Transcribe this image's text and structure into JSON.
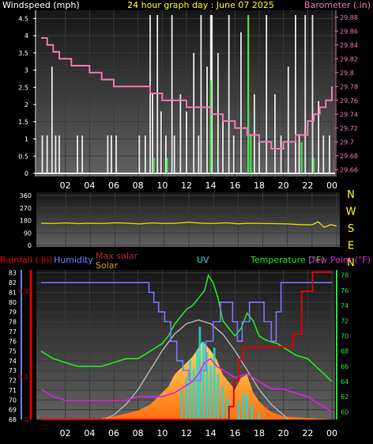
{
  "colors": {
    "wind": "#e8e8e8",
    "gust_green": "#44e844",
    "barometer": "#f07ab6",
    "direction": "#e6e000",
    "humidity": "#7878ff",
    "rain": "#e00000",
    "max_solar": "#b0b0b0",
    "solar_fill": "#ffa020",
    "uv": "#20d8d8",
    "temperature": "#22e822",
    "dew_point": "#e020e0"
  },
  "chart_data": [
    {
      "type": "line",
      "title": "24 hour graph day : June 07 2025",
      "left_label": "Windspeed (mph)",
      "right_label": "Barometer (.in)",
      "x_ticks": [
        "02",
        "04",
        "06",
        "08",
        "10",
        "12",
        "14",
        "16",
        "18",
        "20",
        "22",
        "00"
      ],
      "y_left_ticks": [
        "0",
        "0.5",
        "1",
        "1.5",
        "2",
        "2.5",
        "3",
        "3.5",
        "4",
        "4.5"
      ],
      "y_left_range": [
        0,
        4.6
      ],
      "y_right_ticks": [
        "29.66",
        "29.68",
        "29.7",
        "29.72",
        "29.74",
        "29.76",
        "29.78",
        "29.8",
        "29.82",
        "29.84",
        "29.86",
        "29.88"
      ],
      "y_right_range": [
        29.65,
        29.89
      ],
      "barometer": {
        "x": [
          0,
          0.5,
          1,
          1.5,
          2,
          2.5,
          3,
          4,
          5,
          6,
          7,
          8,
          9,
          10,
          11,
          12,
          13,
          14,
          15,
          16,
          17,
          18,
          19,
          19.5,
          20,
          21,
          22,
          22.5,
          23,
          23.5,
          24
        ],
        "y": [
          29.85,
          29.84,
          29.83,
          29.82,
          29.82,
          29.81,
          29.81,
          29.8,
          29.79,
          29.78,
          29.78,
          29.78,
          29.77,
          29.76,
          29.76,
          29.75,
          29.75,
          29.74,
          29.73,
          29.72,
          29.71,
          29.7,
          29.69,
          29.69,
          29.7,
          29.71,
          29.73,
          29.74,
          29.75,
          29.76,
          29.78
        ]
      },
      "wind_spikes": [
        {
          "x": 0.1,
          "v": 1.1
        },
        {
          "x": 0.5,
          "v": 1.1
        },
        {
          "x": 0.9,
          "v": 3.1
        },
        {
          "x": 1.2,
          "v": 1.1
        },
        {
          "x": 1.5,
          "v": 1.1
        },
        {
          "x": 3.0,
          "v": 1.1
        },
        {
          "x": 3.4,
          "v": 1.1
        },
        {
          "x": 5.5,
          "v": 1.1
        },
        {
          "x": 5.8,
          "v": 1.1
        },
        {
          "x": 6.2,
          "v": 1.1
        },
        {
          "x": 8.1,
          "v": 1.1
        },
        {
          "x": 8.6,
          "v": 1.1
        },
        {
          "x": 9.0,
          "v": 4.6
        },
        {
          "x": 9.2,
          "v": 2.3
        },
        {
          "x": 9.6,
          "v": 4.6
        },
        {
          "x": 9.9,
          "v": 1.8
        },
        {
          "x": 10.3,
          "v": 1.1
        },
        {
          "x": 10.8,
          "v": 4.6
        },
        {
          "x": 11.0,
          "v": 1.1
        },
        {
          "x": 11.5,
          "v": 2.3
        },
        {
          "x": 12.0,
          "v": 1.8
        },
        {
          "x": 12.6,
          "v": 3.5
        },
        {
          "x": 13.0,
          "v": 1.1
        },
        {
          "x": 13.2,
          "v": 4.6
        },
        {
          "x": 13.7,
          "v": 3.1
        },
        {
          "x": 14.0,
          "v": 4.6
        },
        {
          "x": 14.1,
          "v": 4.6
        },
        {
          "x": 14.6,
          "v": 3.5
        },
        {
          "x": 15.0,
          "v": 1.5
        },
        {
          "x": 15.5,
          "v": 4.6
        },
        {
          "x": 15.9,
          "v": 1.1
        },
        {
          "x": 16.5,
          "v": 4.1
        },
        {
          "x": 17.1,
          "v": 4.6
        },
        {
          "x": 17.6,
          "v": 2.3
        },
        {
          "x": 18.0,
          "v": 1.1
        },
        {
          "x": 18.6,
          "v": 4.6
        },
        {
          "x": 19.3,
          "v": 2.3
        },
        {
          "x": 19.8,
          "v": 1.1
        },
        {
          "x": 20.4,
          "v": 3.1
        },
        {
          "x": 21.0,
          "v": 4.6
        },
        {
          "x": 21.3,
          "v": 1.1
        },
        {
          "x": 21.8,
          "v": 4.6
        },
        {
          "x": 22.4,
          "v": 4.6
        },
        {
          "x": 22.9,
          "v": 2.1
        },
        {
          "x": 23.3,
          "v": 1.1
        },
        {
          "x": 23.8,
          "v": 1.1
        }
      ],
      "gust_spikes": [
        {
          "x": 9.3,
          "v": 0.45
        },
        {
          "x": 10.4,
          "v": 0.45
        },
        {
          "x": 14.0,
          "v": 2.7
        },
        {
          "x": 17.1,
          "v": 4.6
        },
        {
          "x": 17.3,
          "v": 1.1
        },
        {
          "x": 21.5,
          "v": 0.9
        },
        {
          "x": 22.5,
          "v": 0.45
        }
      ]
    },
    {
      "type": "line",
      "right_letters": [
        "N",
        "W",
        "S",
        "E",
        "N"
      ],
      "y_ticks": [
        "360",
        "270",
        "180",
        "90",
        "0"
      ],
      "y_range": [
        0,
        360
      ],
      "direction": {
        "x": [
          0,
          1,
          2,
          3,
          4,
          5,
          6,
          7,
          8,
          9,
          10,
          11,
          12,
          13,
          14,
          15,
          16,
          17,
          18,
          19,
          20,
          21,
          22,
          22.5,
          23,
          23.5,
          24
        ],
        "y": [
          160,
          158,
          162,
          157,
          160,
          158,
          163,
          160,
          155,
          162,
          158,
          160,
          166,
          160,
          158,
          163,
          156,
          160,
          158,
          157,
          155,
          150,
          148,
          170,
          130,
          150,
          140
        ]
      }
    },
    {
      "type": "line",
      "labels": {
        "rainfall": "Rainfall (.in)",
        "humidity": "Humidity",
        "max_solar": "Max solar",
        "solar": "Solar",
        "uv": "UV",
        "temperature": "Temperature (°F)",
        "dew_point": "Dew Point (°F)"
      },
      "y_hum_ticks": [
        "68",
        "69",
        "70",
        "71",
        "72",
        "73",
        "74",
        "75",
        "76",
        "77",
        "78",
        "79",
        "80",
        "81",
        "82",
        "83"
      ],
      "y_hum_range": [
        68,
        83.3
      ],
      "y_rain_ticks": [
        "0",
        "0.1",
        "0.3"
      ],
      "y_rain_range": [
        0,
        0.35
      ],
      "y_temp_ticks": [
        "60",
        "62",
        "64",
        "66",
        "68",
        "70",
        "72",
        "74",
        "76",
        "78"
      ],
      "y_temp_range": [
        59,
        78.7
      ],
      "x_ticks": [
        "02",
        "04",
        "06",
        "08",
        "10",
        "12",
        "14",
        "16",
        "18",
        "20",
        "22",
        "00"
      ],
      "humidity": {
        "x": [
          0,
          8.5,
          8.9,
          9.3,
          9.7,
          10.2,
          10.7,
          11.2,
          11.7,
          12.2,
          12.7,
          13.2,
          13.6,
          14.2,
          14.8,
          15.3,
          15.8,
          16.2,
          16.6,
          17.2,
          17.8,
          18.4,
          19,
          19.4,
          19.8,
          20.4,
          24
        ],
        "y": [
          82,
          82,
          81,
          80,
          79,
          78,
          76,
          74,
          73,
          72,
          72,
          73,
          76,
          78,
          80,
          80,
          78,
          76,
          78,
          80,
          80,
          78,
          76,
          79,
          82,
          82,
          82
        ]
      },
      "temperature": {
        "x": [
          0,
          1,
          2,
          3,
          4,
          5,
          6,
          7,
          8,
          9,
          9.5,
          10,
          10.5,
          11,
          11.5,
          12,
          12.5,
          13,
          13.5,
          13.8,
          14.2,
          14.6,
          15,
          15.5,
          16,
          16.5,
          17,
          17.5,
          18,
          18.5,
          19,
          19.5,
          20,
          21,
          22,
          23,
          24
        ],
        "y": [
          68,
          67,
          66.5,
          66,
          66,
          66,
          66.5,
          67,
          67,
          68,
          68.5,
          69,
          70,
          71.5,
          72.5,
          73.5,
          74,
          75,
          76,
          78,
          77,
          75,
          72,
          71,
          70,
          71,
          73,
          72,
          70,
          69.5,
          69.2,
          69,
          68.5,
          67.5,
          67,
          65.5,
          64
        ]
      },
      "dew_point": {
        "x": [
          0,
          1,
          2,
          3,
          4,
          5,
          6,
          7,
          8,
          9,
          10,
          11,
          12,
          12.5,
          13,
          13.5,
          14,
          14.5,
          15,
          15.5,
          16,
          17,
          18,
          19,
          20,
          21,
          22,
          23,
          24
        ],
        "y": [
          63,
          62,
          61.5,
          61.5,
          61.5,
          61.5,
          61.5,
          61.5,
          62,
          62,
          62,
          62.5,
          63.5,
          64,
          65,
          66.5,
          67,
          66,
          65.5,
          65,
          64.5,
          65,
          64,
          63,
          63,
          62.5,
          62,
          61,
          60
        ]
      },
      "rain": {
        "x": [
          0,
          15.2,
          15.5,
          15.9,
          16.3,
          16.7,
          17.2,
          19.5,
          20,
          20.8,
          21.5,
          22.4,
          23.5,
          24
        ],
        "y": [
          0,
          0,
          0.03,
          0.09,
          0.14,
          0.17,
          0.17,
          0.17,
          0.17,
          0.2,
          0.3,
          0.345,
          0.345,
          0.345
        ]
      },
      "max_solar": {
        "x": [
          5.2,
          6,
          7,
          8,
          9,
          10,
          11,
          12,
          13,
          14,
          15,
          16,
          17,
          18,
          19,
          20,
          20.4
        ],
        "y": [
          0,
          0.03,
          0.1,
          0.2,
          0.33,
          0.46,
          0.57,
          0.64,
          0.665,
          0.64,
          0.57,
          0.46,
          0.33,
          0.2,
          0.1,
          0.03,
          0
        ]
      },
      "solar": {
        "x": [
          5,
          6,
          7,
          8,
          8.5,
          9,
          9.5,
          10,
          10.5,
          11,
          11.5,
          12,
          12.5,
          13,
          13.3,
          13.6,
          14,
          14.5,
          15,
          15.5,
          16,
          16.5,
          17,
          17.5,
          18,
          18.5,
          19,
          20,
          24
        ],
        "y": [
          0.01,
          0.02,
          0.04,
          0.06,
          0.08,
          0.1,
          0.14,
          0.18,
          0.22,
          0.3,
          0.34,
          0.38,
          0.42,
          0.48,
          0.52,
          0.5,
          0.46,
          0.4,
          0.3,
          0.25,
          0.2,
          0.28,
          0.3,
          0.18,
          0.12,
          0.08,
          0.05,
          0.02,
          0.0
        ]
      },
      "uv_bars": [
        {
          "x": 11.6,
          "v": 0.2
        },
        {
          "x": 12.0,
          "v": 0.28
        },
        {
          "x": 12.3,
          "v": 0.4
        },
        {
          "x": 12.6,
          "v": 0.34
        },
        {
          "x": 12.9,
          "v": 0.46
        },
        {
          "x": 13.1,
          "v": 0.62
        },
        {
          "x": 13.4,
          "v": 0.52
        },
        {
          "x": 13.7,
          "v": 0.45
        },
        {
          "x": 14.0,
          "v": 0.36
        },
        {
          "x": 14.3,
          "v": 0.48
        },
        {
          "x": 14.6,
          "v": 0.3
        },
        {
          "x": 15.0,
          "v": 0.22
        },
        {
          "x": 15.4,
          "v": 0.14
        },
        {
          "x": 16.3,
          "v": 0.12
        },
        {
          "x": 16.7,
          "v": 0.18
        },
        {
          "x": 17.0,
          "v": 0.16
        },
        {
          "x": 17.4,
          "v": 0.1
        },
        {
          "x": 18.0,
          "v": 0.05
        }
      ]
    }
  ]
}
